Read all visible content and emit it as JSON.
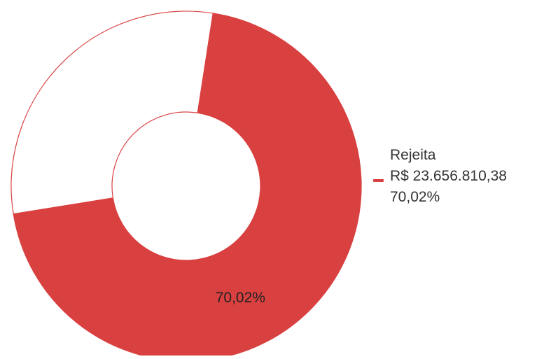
{
  "chart_data": {
    "type": "pie",
    "donut": true,
    "slices": [
      {
        "label": "Rejeita",
        "value_text": "R$ 23.656.810,38",
        "percent": 70.02,
        "percent_text": "70,02%",
        "color": "#d94040"
      },
      {
        "label": "",
        "percent": 29.98,
        "color": "#ffffff"
      }
    ],
    "legend": {
      "position": "right",
      "entries": [
        {
          "label": "Rejeita",
          "value_text": "R$ 23.656.810,38",
          "percent_text": "70,02%",
          "color": "#d94040"
        }
      ]
    }
  },
  "colors": {
    "slice_outline": "#d94040",
    "label_text": "#222222",
    "legend_text": "#333333"
  }
}
